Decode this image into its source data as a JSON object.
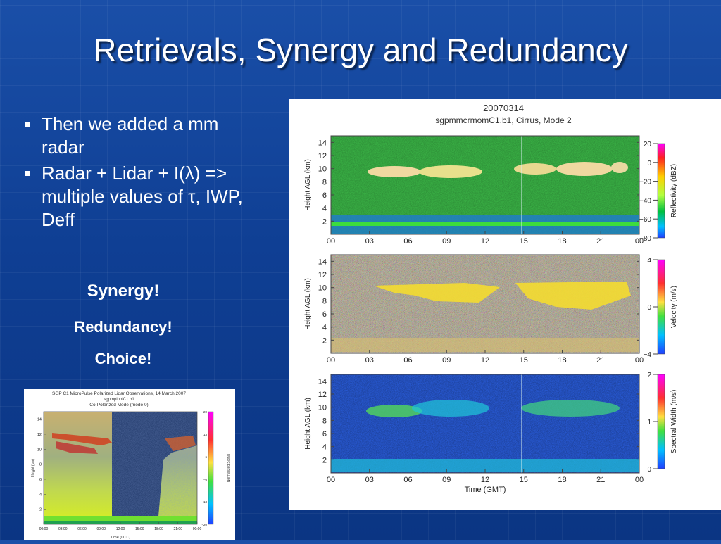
{
  "slide": {
    "title": "Retrievals, Synergy and Redundancy",
    "bullets": [
      "Then we added a mm radar",
      "Radar + Lidar + I(λ) => multiple values of τ, IWP, Deff"
    ],
    "emphasis": [
      "Synergy!",
      "Redundancy!",
      "Choice!"
    ]
  },
  "radar_figure": {
    "date": "20070314",
    "subtitle": "sgpmmcrmomC1.b1, Cirrus, Mode 2",
    "x_label": "Time (GMT)",
    "x_ticks": [
      "00",
      "03",
      "06",
      "09",
      "12",
      "15",
      "18",
      "21",
      "00"
    ],
    "y_label": "Height AGL (km)",
    "y_ticks": [
      "2",
      "4",
      "6",
      "8",
      "10",
      "12",
      "14"
    ],
    "panels": [
      {
        "cbar_label": "Reflectivity (dBZ)",
        "cbar_ticks": [
          "20",
          "0",
          "−20",
          "−40",
          "−60",
          "−80"
        ],
        "background": "#3fbf3f"
      },
      {
        "cbar_label": "Velocity (m/s)",
        "cbar_ticks": [
          "4",
          "0",
          "−4"
        ],
        "background": "#9c8c5e"
      },
      {
        "cbar_label": "Spectral Width (m/s)",
        "cbar_ticks": [
          "2",
          "1",
          "0"
        ],
        "background": "#2f63e0"
      }
    ]
  },
  "lidar_figure": {
    "title": "SGP C1 MicroPulse Polarized Lidar Observations, 14 March 2007",
    "subtitle": "sgpmplpolC1.b1",
    "mode": "Co-Polarized Mode (mode 0)",
    "x_label": "Time (UTC)",
    "x_ticks": [
      "00:00",
      "03:00",
      "06:00",
      "09:00",
      "12:00",
      "15:00",
      "18:00",
      "21:00",
      "00:00"
    ],
    "y_label": "Height (km)",
    "y_ticks": [
      "2",
      "4",
      "6",
      "8",
      "10",
      "12",
      "14"
    ],
    "cbar_label": "Normalized Signal",
    "cbar_ticks": [
      "20",
      "13",
      "6",
      "−6",
      "−13",
      "−20"
    ]
  }
}
